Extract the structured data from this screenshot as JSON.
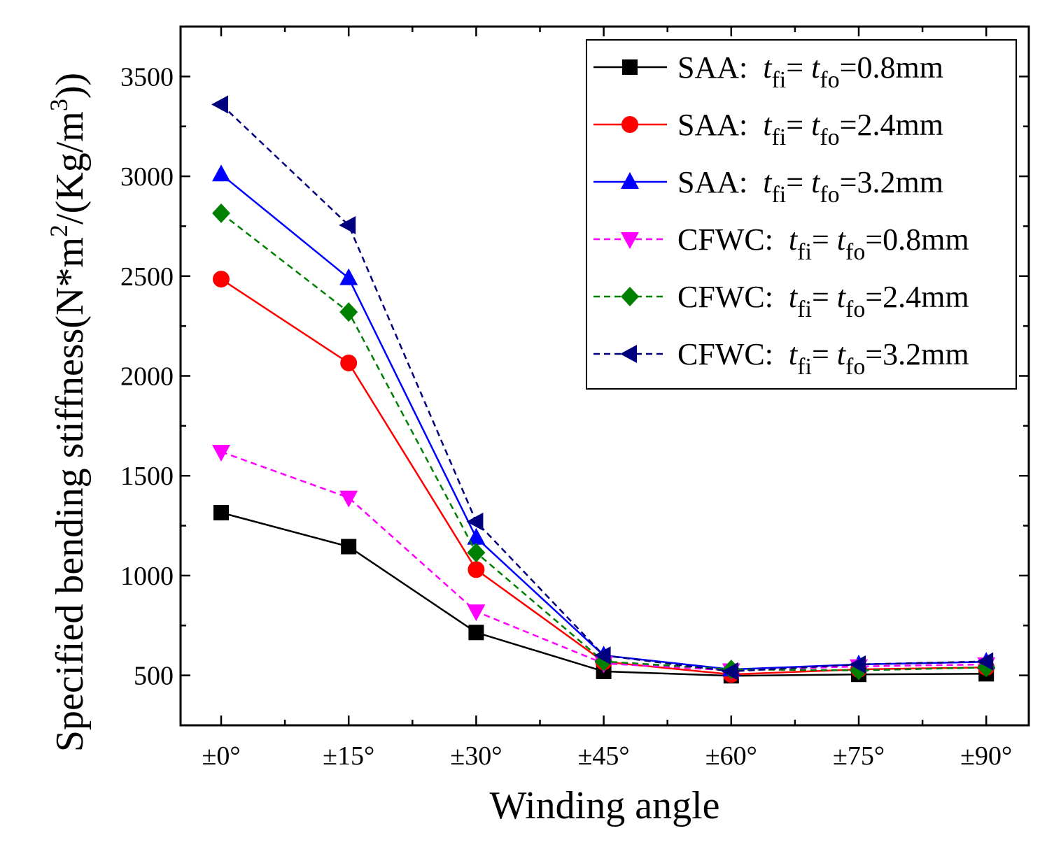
{
  "chart_data": {
    "type": "line",
    "categories": [
      "±0°",
      "±15°",
      "±30°",
      "±45°",
      "±60°",
      "±75°",
      "±90°"
    ],
    "xlabel": "Winding angle",
    "ylabel": {
      "prefix": "Specified bending stiffness(N*m",
      "sup1": "2",
      "middle": "/(Kg/m",
      "sup2": "3",
      "suffix": "))"
    },
    "ylim": [
      250,
      3750
    ],
    "yticks": [
      500,
      1000,
      1500,
      2000,
      2500,
      3000,
      3500
    ],
    "grid": false,
    "legend_position": "top-right",
    "series": [
      {
        "label_prefix": "SAA:",
        "thickness": "0.8mm",
        "color": "#000000",
        "marker": "square",
        "dashed": false,
        "values": [
          1315,
          1145,
          715,
          520,
          498,
          505,
          508
        ]
      },
      {
        "label_prefix": "SAA:",
        "thickness": "2.4mm",
        "color": "#ff0000",
        "marker": "circle",
        "dashed": false,
        "values": [
          2485,
          2065,
          1030,
          568,
          505,
          530,
          540
        ]
      },
      {
        "label_prefix": "SAA:",
        "thickness": "3.2mm",
        "color": "#0000ff",
        "marker": "triangle-up",
        "dashed": false,
        "values": [
          3010,
          2490,
          1190,
          600,
          530,
          555,
          568
        ]
      },
      {
        "label_prefix": "CFWC:",
        "thickness": "0.8mm",
        "color": "#ff00ff",
        "marker": "triangle-down",
        "dashed": true,
        "values": [
          1620,
          1390,
          820,
          560,
          525,
          545,
          555
        ]
      },
      {
        "label_prefix": "CFWC:",
        "thickness": "2.4mm",
        "color": "#008000",
        "marker": "diamond",
        "dashed": true,
        "values": [
          2815,
          2320,
          1115,
          570,
          530,
          525,
          540
        ]
      },
      {
        "label_prefix": "CFWC:",
        "thickness": "3.2mm",
        "color": "#00007f",
        "marker": "triangle-left",
        "dashed": true,
        "values": [
          3360,
          2755,
          1270,
          600,
          520,
          555,
          570
        ]
      }
    ]
  }
}
